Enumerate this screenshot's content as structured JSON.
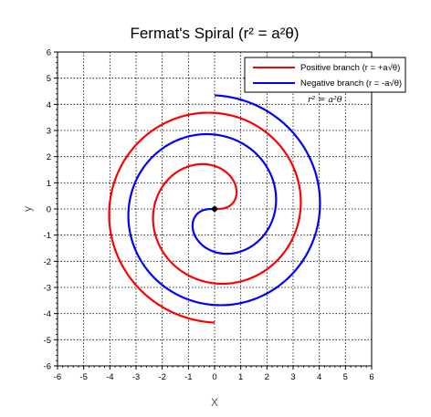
{
  "chart_data": {
    "type": "line",
    "title": "Fermat's Spiral (r² = a²θ)",
    "xlabel": "X",
    "ylabel": "y",
    "xlim": [
      -6,
      6
    ],
    "ylim": [
      -6,
      6
    ],
    "xticks": [
      "-6",
      "-5",
      "-4",
      "-3",
      "-2",
      "-1",
      "0",
      "1",
      "2",
      "3",
      "4",
      "5",
      "6"
    ],
    "yticks": [
      "-6",
      "-5",
      "-4",
      "-3",
      "-2",
      "-1",
      "0",
      "1",
      "2",
      "3",
      "4",
      "5",
      "6"
    ],
    "grid": true,
    "legend_position": "top-right",
    "annotation": "r² = a²θ",
    "spiral": {
      "a": 1.31,
      "theta_max_turns": 1.75
    },
    "series": [
      {
        "name": "Positive branch (r = +a√θ)",
        "sign": 1,
        "color": "#ff0000"
      },
      {
        "name": "Negative branch (r = -a√θ)",
        "sign": -1,
        "color": "#0000ff"
      }
    ],
    "origin_marker": {
      "x": 0,
      "y": 0,
      "color": "#000000"
    }
  }
}
